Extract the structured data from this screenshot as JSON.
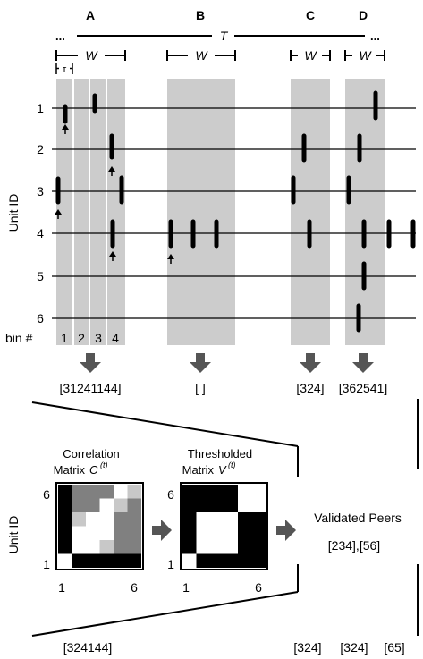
{
  "top": {
    "ellipsis_left": "...",
    "ellipsis_right": "...",
    "period_label": "T",
    "windows": [
      {
        "letter": "A",
        "width_label": "W"
      },
      {
        "letter": "B",
        "width_label": "W"
      },
      {
        "letter": "C",
        "width_label": "W"
      },
      {
        "letter": "D",
        "width_label": "W"
      }
    ],
    "bin_width_label": "τ"
  },
  "raster": {
    "y_axis_label": "Unit ID",
    "unit_ids": [
      "1",
      "2",
      "3",
      "4",
      "5",
      "6"
    ],
    "bin_row_label": "bin #",
    "bin_numbers": [
      "1",
      "2",
      "3",
      "4"
    ],
    "sequences": [
      "[31241144]",
      "[ ]",
      "[324]",
      "[362541]"
    ]
  },
  "bottom": {
    "correlation_title_line1": "Correlation",
    "correlation_title_line2": "Matrix",
    "correlation_symbol": "C",
    "thresholded_title_line1": "Thresholded",
    "thresholded_title_line2": "Matrix",
    "thresholded_symbol": "V",
    "superscript": "(t)",
    "y_axis_label": "Unit ID",
    "axis_min": "1",
    "axis_max": "6",
    "validated_label": "Validated Peers",
    "validated_value": "[234],[56]",
    "sequence_left": "[324144]",
    "sequences_right": [
      "[324]",
      "[324]",
      "[65]"
    ]
  },
  "colors": {
    "window_fill": "#cccccc",
    "dark_gray": "#808080",
    "light_gray": "#c8c8c8",
    "arrow": "#555555"
  }
}
